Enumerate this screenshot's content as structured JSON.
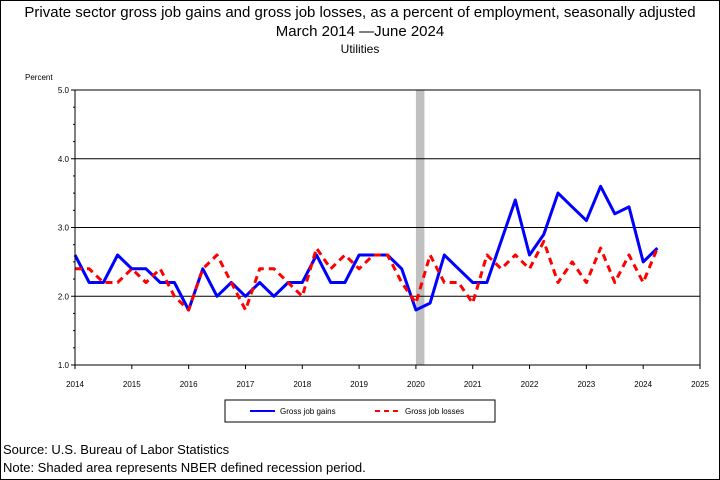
{
  "chart_data": {
    "type": "line",
    "title": "Private sector gross job gains and gross job losses, as a percent of employment, seasonally adjusted",
    "date_range": "March 2014 —June 2024",
    "subtitle": "Utilities",
    "ylabel": "Percent",
    "ylim": [
      1.0,
      5.0
    ],
    "y_ticks": [
      "1.0",
      "2.0",
      "3.0",
      "4.0",
      "5.0"
    ],
    "xlim": [
      2014,
      2025
    ],
    "x_ticks": [
      "2014",
      "2015",
      "2016",
      "2017",
      "2018",
      "2019",
      "2020",
      "2021",
      "2022",
      "2023",
      "2024",
      "2025"
    ],
    "grid": "horizontal",
    "recession": {
      "start": 2020.0,
      "end": 2020.15
    },
    "legend_placement": "bottom",
    "series": [
      {
        "name": "Gross job gains",
        "color": "#0000ff",
        "style": "solid",
        "x": [
          2014.0,
          2014.25,
          2014.5,
          2014.75,
          2015.0,
          2015.25,
          2015.5,
          2015.75,
          2016.0,
          2016.25,
          2016.5,
          2016.75,
          2017.0,
          2017.25,
          2017.5,
          2017.75,
          2018.0,
          2018.25,
          2018.5,
          2018.75,
          2019.0,
          2019.25,
          2019.5,
          2019.75,
          2020.0,
          2020.25,
          2020.5,
          2020.75,
          2021.0,
          2021.25,
          2021.5,
          2021.75,
          2022.0,
          2022.25,
          2022.5,
          2022.75,
          2023.0,
          2023.25,
          2023.5,
          2023.75,
          2024.0,
          2024.25
        ],
        "values": [
          2.6,
          2.2,
          2.2,
          2.6,
          2.4,
          2.4,
          2.2,
          2.2,
          1.8,
          2.4,
          2.0,
          2.2,
          2.0,
          2.2,
          2.0,
          2.2,
          2.2,
          2.6,
          2.2,
          2.2,
          2.6,
          2.6,
          2.6,
          2.4,
          1.8,
          1.9,
          2.6,
          2.4,
          2.2,
          2.2,
          2.8,
          3.4,
          2.6,
          2.9,
          3.5,
          3.3,
          3.1,
          3.6,
          3.2,
          3.3,
          2.5,
          2.7
        ]
      },
      {
        "name": "Gross job losses",
        "color": "#ff0000",
        "style": "dashed",
        "x": [
          2014.0,
          2014.25,
          2014.5,
          2014.75,
          2015.0,
          2015.25,
          2015.5,
          2015.75,
          2016.0,
          2016.25,
          2016.5,
          2016.75,
          2017.0,
          2017.25,
          2017.5,
          2017.75,
          2018.0,
          2018.25,
          2018.5,
          2018.75,
          2019.0,
          2019.25,
          2019.5,
          2019.75,
          2020.0,
          2020.25,
          2020.5,
          2020.75,
          2021.0,
          2021.25,
          2021.5,
          2021.75,
          2022.0,
          2022.25,
          2022.5,
          2022.75,
          2023.0,
          2023.25,
          2023.5,
          2023.75,
          2024.0,
          2024.25
        ],
        "values": [
          2.4,
          2.4,
          2.2,
          2.2,
          2.4,
          2.2,
          2.4,
          2.0,
          1.8,
          2.4,
          2.6,
          2.2,
          1.8,
          2.4,
          2.4,
          2.2,
          2.0,
          2.7,
          2.4,
          2.6,
          2.4,
          2.6,
          2.6,
          2.2,
          1.9,
          2.6,
          2.2,
          2.2,
          1.9,
          2.6,
          2.4,
          2.6,
          2.4,
          2.8,
          2.2,
          2.5,
          2.2,
          2.7,
          2.2,
          2.6,
          2.2,
          2.7
        ]
      }
    ]
  },
  "footer": {
    "source": "Source: U.S. Bureau of Labor Statistics",
    "note": "Note: Shaded area represents NBER defined recession period."
  }
}
